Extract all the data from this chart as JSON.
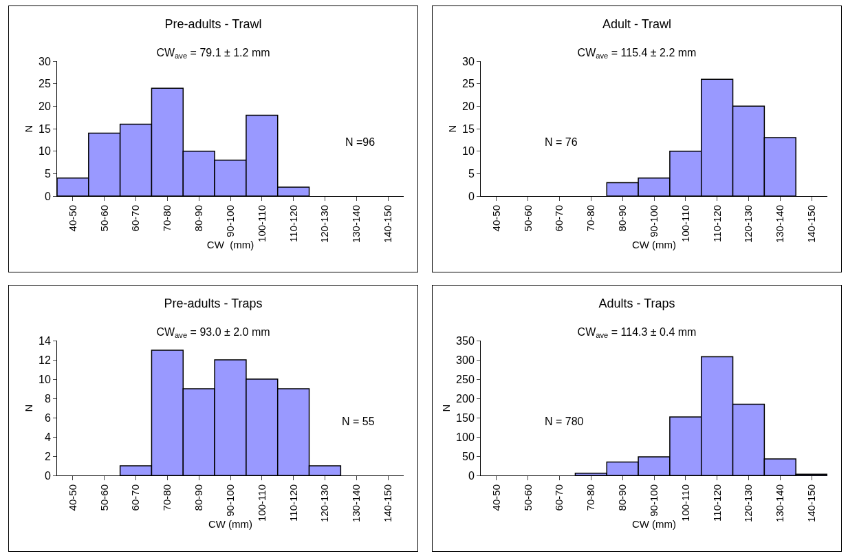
{
  "chart_data": [
    {
      "type": "bar",
      "title": "Pre-adults - Trawl",
      "subtitle": "CW$_{ave}$ = 79.1 ± 1.2 mm",
      "xlabel": "CW  (mm)",
      "ylabel": "N",
      "categories": [
        "40-50",
        "50-60",
        "60-70",
        "70-80",
        "80-90",
        "90-100",
        "100-110",
        "110-120",
        "120-130",
        "130-140",
        "140-150"
      ],
      "values": [
        4,
        14,
        16,
        24,
        10,
        8,
        18,
        2,
        0,
        0,
        0
      ],
      "color": "#9999ff",
      "ylim": [
        0,
        30
      ],
      "yticks": [
        0,
        5,
        10,
        15,
        20,
        25,
        30
      ],
      "grid": false,
      "annotations": [
        "N =96"
      ]
    },
    {
      "type": "bar",
      "title": "Adult - Trawl",
      "subtitle": "CW$_{ave}$ = 115.4 ± 2.2 mm",
      "xlabel": "CW (mm)",
      "ylabel": "N",
      "categories": [
        "40-50",
        "50-60",
        "60-70",
        "70-80",
        "80-90",
        "90-100",
        "100-110",
        "110-120",
        "120-130",
        "130-140",
        "140-150"
      ],
      "values": [
        0,
        0,
        0,
        0,
        3,
        4,
        10,
        26,
        20,
        13,
        0
      ],
      "color": "#9999ff",
      "ylim": [
        0,
        30
      ],
      "yticks": [
        0,
        5,
        10,
        15,
        20,
        25,
        30
      ],
      "grid": false,
      "annotations": [
        "N = 76"
      ]
    },
    {
      "type": "bar",
      "title": "Pre-adults - Traps",
      "subtitle": "CW$_{ave}$ = 93.0 ± 2.0 mm",
      "xlabel": "CW (mm)",
      "ylabel": "N",
      "categories": [
        "40-50",
        "50-60",
        "60-70",
        "70-80",
        "80-90",
        "90-100",
        "100-110",
        "110-120",
        "120-130",
        "130-140",
        "140-150"
      ],
      "values": [
        0,
        0,
        1,
        13,
        9,
        12,
        10,
        9,
        1,
        0,
        0
      ],
      "color": "#9999ff",
      "ylim": [
        0,
        14
      ],
      "yticks": [
        0,
        2,
        4,
        6,
        8,
        10,
        12,
        14
      ],
      "grid": false,
      "annotations": [
        "N = 55"
      ]
    },
    {
      "type": "bar",
      "title": "Adults - Traps",
      "subtitle": "CW$_{ave}$ = 114.3 ± 0.4 mm",
      "xlabel": "CW (mm)",
      "ylabel": "N",
      "categories": [
        "40-50",
        "50-60",
        "60-70",
        "70-80",
        "80-90",
        "90-100",
        "100-110",
        "110-120",
        "120-130",
        "130-140",
        "140-150"
      ],
      "values": [
        0,
        0,
        0,
        6,
        35,
        48,
        152,
        308,
        185,
        43,
        3
      ],
      "color": "#9999ff",
      "ylim": [
        0,
        350
      ],
      "yticks": [
        0,
        50,
        100,
        150,
        200,
        250,
        300,
        350
      ],
      "grid": false,
      "annotations": [
        "N = 780"
      ]
    }
  ]
}
